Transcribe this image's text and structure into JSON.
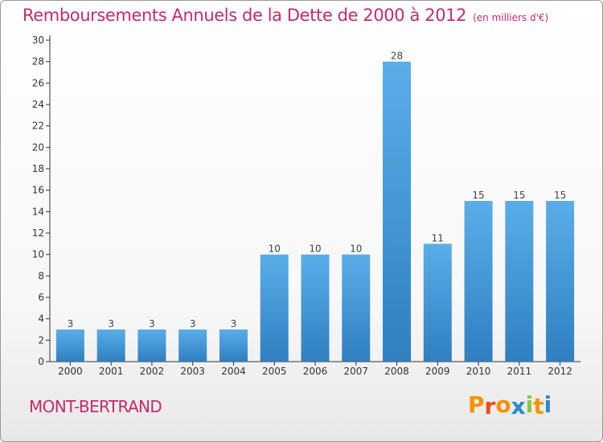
{
  "title": "Remboursements Annuels de la Dette de 2000 à 2012",
  "subtitle": "(en milliers d'€)",
  "commune": "MONT-BERTRAND",
  "brand": "Proxiti",
  "colors": {
    "title": "#c52a6d",
    "bar_top": "#5aaee8",
    "bar_bottom": "#2f7fc1",
    "axis": "#333333",
    "brand_letters": [
      "#f29400",
      "#e8501e",
      "#f29400",
      "#2c8ad0",
      "#8cc63f",
      "#f29400",
      "#2c8ad0"
    ]
  },
  "chart_data": {
    "type": "bar",
    "title": "Remboursements Annuels de la Dette de 2000 à 2012",
    "xlabel": "",
    "ylabel": "",
    "categories": [
      "2000",
      "2001",
      "2002",
      "2003",
      "2004",
      "2005",
      "2006",
      "2007",
      "2008",
      "2009",
      "2010",
      "2011",
      "2012"
    ],
    "values": [
      3,
      3,
      3,
      3,
      3,
      10,
      10,
      10,
      28,
      11,
      15,
      15,
      15
    ],
    "ylim": [
      0,
      30
    ],
    "yticks": [
      "0",
      "2",
      "4",
      "6",
      "8",
      "10",
      "12",
      "14",
      "16",
      "18",
      "20",
      "22",
      "24",
      "26",
      "28",
      "30"
    ],
    "grid": false,
    "data_labels": true
  }
}
